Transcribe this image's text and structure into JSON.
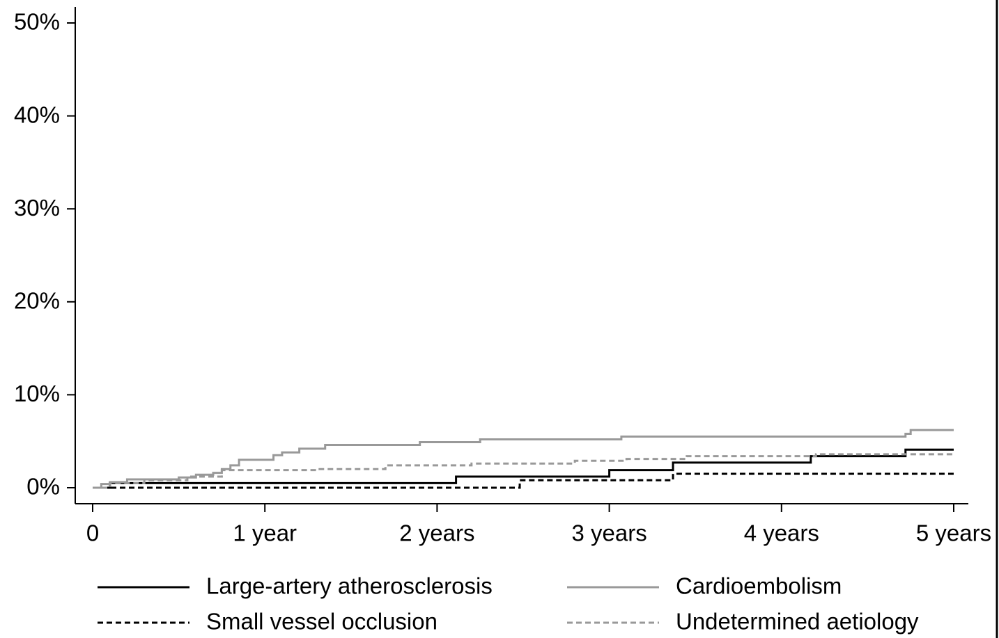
{
  "chart_data": {
    "type": "line",
    "drawstyle": "steps-post",
    "xlim": [
      0,
      5
    ],
    "xticks": [
      0,
      {
        "value": 1,
        "label": "1 year"
      },
      {
        "value": 2,
        "label": "2 years"
      },
      {
        "value": 3,
        "label": "3 years"
      },
      {
        "value": 4,
        "label": "4 years"
      },
      {
        "value": 5,
        "label": "5 years"
      }
    ],
    "ylim": [
      0,
      50
    ],
    "yticks": [
      {
        "value": 0,
        "label": "0%"
      },
      {
        "value": 10,
        "label": "10%"
      },
      {
        "value": 20,
        "label": "20%"
      },
      {
        "value": 30,
        "label": "30%"
      },
      {
        "value": 40,
        "label": "40%"
      },
      {
        "value": 50,
        "label": "50%"
      }
    ],
    "grid": false,
    "legend": "bottom",
    "series": [
      {
        "name": "Large-artery atherosclerosis",
        "color": "#000000",
        "dash": false,
        "x": [
          0,
          0.1,
          2.11,
          3.0,
          3.37,
          4.17,
          4.72,
          5
        ],
        "values": [
          0,
          0.5,
          1.2,
          1.9,
          2.7,
          3.4,
          4.1,
          4.1
        ]
      },
      {
        "name": "Cardioembolism",
        "color": "#999999",
        "dash": false,
        "x": [
          0,
          0.05,
          0.1,
          0.2,
          0.5,
          0.6,
          0.7,
          0.75,
          0.8,
          0.85,
          1.05,
          1.1,
          1.2,
          1.35,
          1.9,
          2.25,
          3.07,
          4.72,
          4.75,
          5
        ],
        "values": [
          0,
          0.4,
          0.6,
          0.9,
          1.1,
          1.4,
          1.6,
          2.0,
          2.4,
          3.0,
          3.5,
          3.8,
          4.2,
          4.6,
          4.9,
          5.2,
          5.5,
          5.8,
          6.2,
          6.2
        ]
      },
      {
        "name": "Small vessel occlusion",
        "color": "#000000",
        "dash": true,
        "x": [
          0,
          2.48,
          3.37,
          5
        ],
        "values": [
          0,
          0.8,
          1.5,
          1.5
        ]
      },
      {
        "name": "Undetermined aetiology",
        "color": "#999999",
        "dash": true,
        "x": [
          0,
          0.1,
          0.3,
          0.55,
          0.75,
          1.3,
          1.7,
          2.2,
          2.8,
          3.1,
          3.45,
          4.2,
          5
        ],
        "values": [
          0,
          0.5,
          0.8,
          1.2,
          1.9,
          2.0,
          2.4,
          2.6,
          2.9,
          3.1,
          3.4,
          3.6,
          3.8
        ]
      }
    ]
  }
}
